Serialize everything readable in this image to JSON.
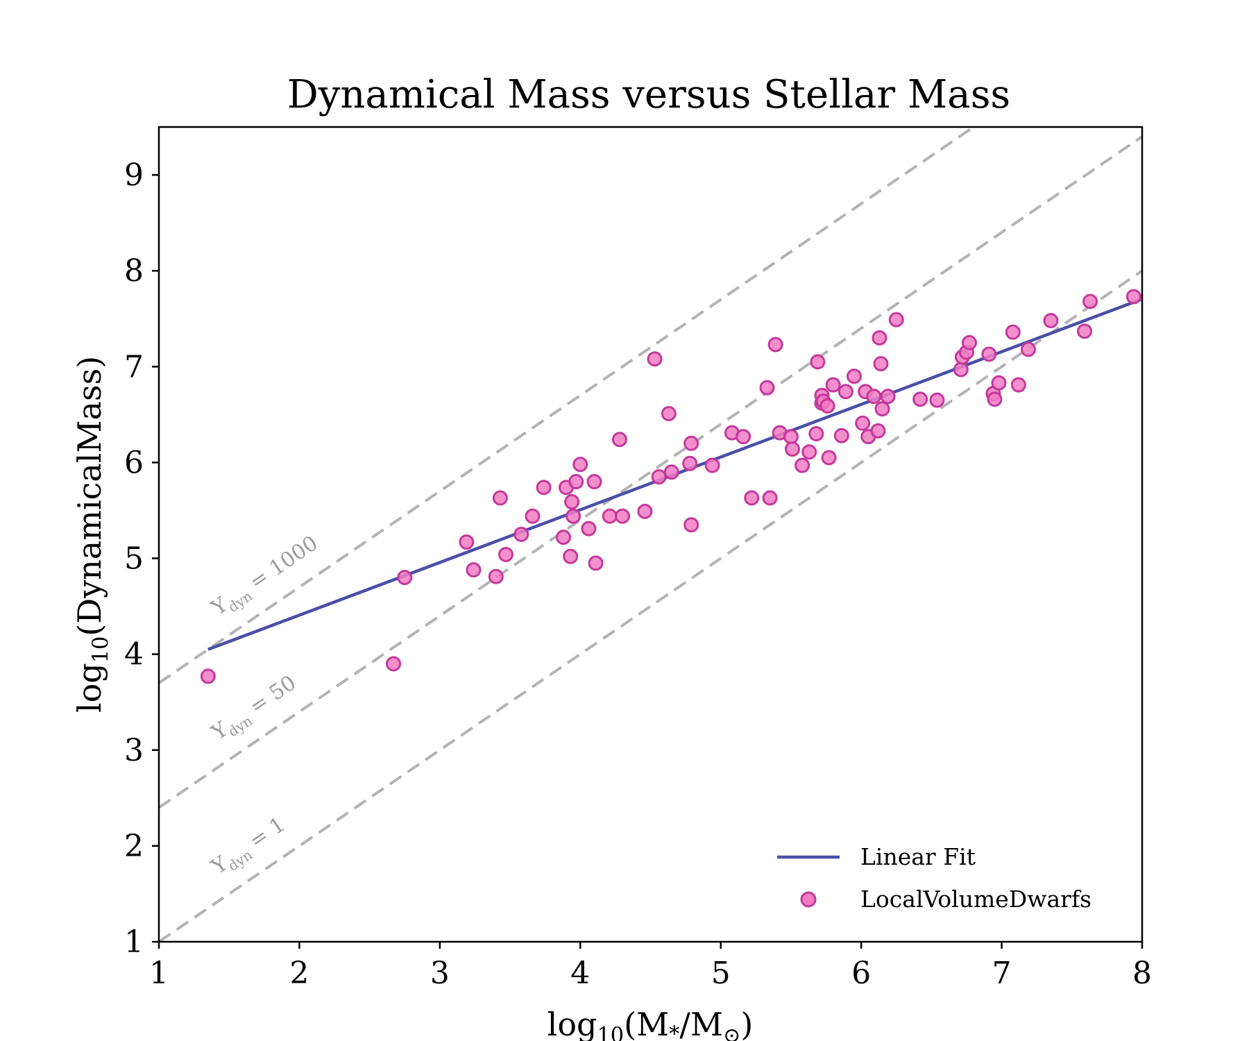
{
  "chart_data": {
    "type": "scatter",
    "title": "Dynamical Mass versus Stellar Mass",
    "xlabel": {
      "prefix": "log",
      "sub": "10",
      "rest": "(M",
      "star": "*",
      "mid": "/M",
      "sun": "⊙",
      "end": ")"
    },
    "ylabel": {
      "prefix": "log",
      "sub": "10",
      "rest": "(DynamicalMass)"
    },
    "xlim": [
      1,
      8
    ],
    "ylim": [
      1,
      9.5
    ],
    "xticks": [
      1,
      2,
      3,
      4,
      5,
      6,
      7,
      8
    ],
    "yticks": [
      1,
      2,
      3,
      4,
      5,
      6,
      7,
      8,
      9
    ],
    "grid": false,
    "legend_position": "bottom-right",
    "colors": {
      "points_fill": "#f27bc4",
      "points_edge": "#c3399a",
      "fit_line": "#4a4fa8",
      "reference_lines": "#b3b3b3",
      "reference_text": "#9a9a9a"
    },
    "series": [
      {
        "name": "LocalVolumeDwarfs",
        "kind": "scatter",
        "points": [
          [
            1.35,
            3.77
          ],
          [
            2.67,
            3.9
          ],
          [
            2.75,
            4.8
          ],
          [
            3.19,
            5.17
          ],
          [
            3.24,
            4.88
          ],
          [
            3.4,
            4.81
          ],
          [
            3.43,
            5.63
          ],
          [
            3.47,
            5.04
          ],
          [
            3.58,
            5.25
          ],
          [
            3.66,
            5.44
          ],
          [
            3.74,
            5.74
          ],
          [
            3.88,
            5.22
          ],
          [
            3.9,
            5.74
          ],
          [
            3.93,
            5.02
          ],
          [
            3.94,
            5.59
          ],
          [
            3.95,
            5.44
          ],
          [
            3.97,
            5.8
          ],
          [
            4.0,
            5.98
          ],
          [
            4.06,
            5.31
          ],
          [
            4.1,
            5.8
          ],
          [
            4.11,
            4.95
          ],
          [
            4.21,
            5.44
          ],
          [
            4.28,
            6.24
          ],
          [
            4.3,
            5.44
          ],
          [
            4.46,
            5.49
          ],
          [
            4.53,
            7.08
          ],
          [
            4.56,
            5.85
          ],
          [
            4.63,
            6.51
          ],
          [
            4.65,
            5.9
          ],
          [
            4.78,
            5.99
          ],
          [
            4.79,
            6.2
          ],
          [
            4.79,
            5.35
          ],
          [
            4.94,
            5.97
          ],
          [
            5.08,
            6.31
          ],
          [
            5.16,
            6.27
          ],
          [
            5.22,
            5.63
          ],
          [
            5.33,
            6.78
          ],
          [
            5.35,
            5.63
          ],
          [
            5.39,
            7.23
          ],
          [
            5.42,
            6.31
          ],
          [
            5.5,
            6.27
          ],
          [
            5.51,
            6.14
          ],
          [
            5.58,
            5.97
          ],
          [
            5.63,
            6.11
          ],
          [
            5.68,
            6.3
          ],
          [
            5.69,
            7.05
          ],
          [
            5.72,
            6.7
          ],
          [
            5.72,
            6.62
          ],
          [
            5.73,
            6.64
          ],
          [
            5.76,
            6.59
          ],
          [
            5.77,
            6.05
          ],
          [
            5.8,
            6.81
          ],
          [
            5.86,
            6.28
          ],
          [
            5.89,
            6.74
          ],
          [
            5.95,
            6.9
          ],
          [
            6.01,
            6.41
          ],
          [
            6.03,
            6.74
          ],
          [
            6.05,
            6.27
          ],
          [
            6.09,
            6.69
          ],
          [
            6.12,
            6.33
          ],
          [
            6.13,
            7.3
          ],
          [
            6.14,
            7.03
          ],
          [
            6.15,
            6.56
          ],
          [
            6.19,
            6.69
          ],
          [
            6.25,
            7.49
          ],
          [
            6.42,
            6.66
          ],
          [
            6.54,
            6.65
          ],
          [
            6.71,
            6.97
          ],
          [
            6.72,
            7.1
          ],
          [
            6.75,
            7.15
          ],
          [
            6.77,
            7.25
          ],
          [
            6.91,
            7.13
          ],
          [
            6.94,
            6.72
          ],
          [
            6.95,
            6.66
          ],
          [
            6.98,
            6.83
          ],
          [
            7.08,
            7.36
          ],
          [
            7.12,
            6.81
          ],
          [
            7.19,
            7.18
          ],
          [
            7.35,
            7.48
          ],
          [
            7.59,
            7.37
          ],
          [
            7.63,
            7.68
          ],
          [
            7.94,
            7.73
          ]
        ]
      },
      {
        "name": "Linear Fit",
        "kind": "line",
        "x": [
          1.35,
          7.99
        ],
        "y": [
          4.05,
          7.7
        ]
      }
    ],
    "reference_lines": [
      {
        "label_prefix": "Υ",
        "label_sub": "dyn",
        "label_value": " = 1000",
        "intercept": 2.7,
        "slope": 1
      },
      {
        "label_prefix": "Υ",
        "label_sub": "dyn",
        "label_value": " = 50",
        "intercept": 1.4,
        "slope": 1
      },
      {
        "label_prefix": "Υ",
        "label_sub": "dyn",
        "label_value": " = 1",
        "intercept": 0.0,
        "slope": 1
      }
    ]
  }
}
